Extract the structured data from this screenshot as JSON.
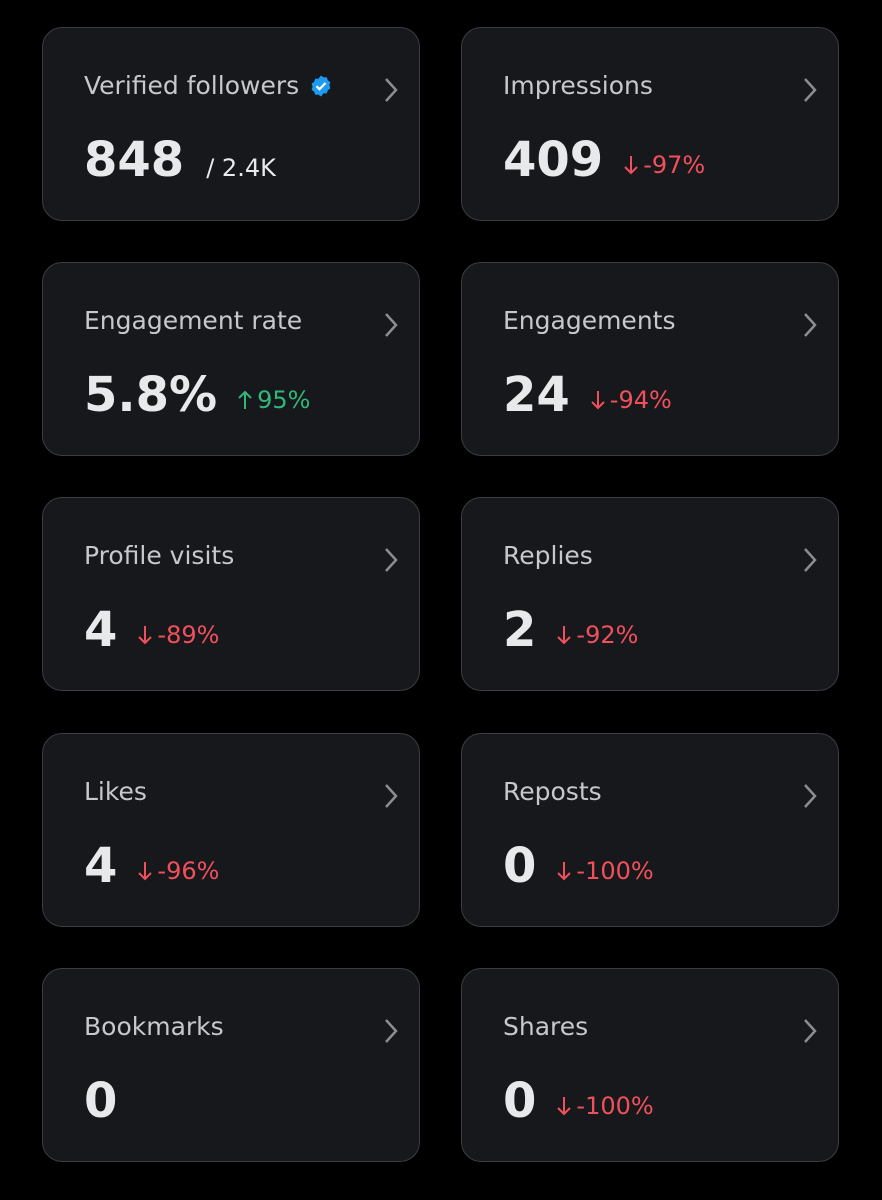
{
  "cards": [
    {
      "label": "Verified followers",
      "value": "848",
      "total": "/ 2.4K"
    },
    {
      "label": "Impressions",
      "value": "409",
      "change": "-97%"
    },
    {
      "label": "Engagement rate",
      "value": "5.8%",
      "change": "95%"
    },
    {
      "label": "Engagements",
      "value": "24",
      "change": "-94%"
    },
    {
      "label": "Profile visits",
      "value": "4",
      "change": "-89%"
    },
    {
      "label": "Replies",
      "value": "2",
      "change": "-92%"
    },
    {
      "label": "Likes",
      "value": "4",
      "change": "-96%"
    },
    {
      "label": "Reposts",
      "value": "0",
      "change": "-100%"
    },
    {
      "label": "Bookmarks",
      "value": "0"
    },
    {
      "label": "Shares",
      "value": "0",
      "change": "-100%"
    }
  ]
}
